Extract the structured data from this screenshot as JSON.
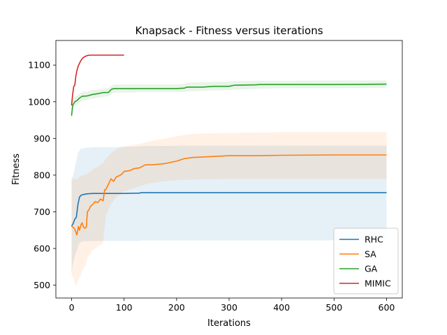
{
  "chart_data": {
    "type": "line",
    "title": "Knapsack - Fitness versus iterations",
    "xlabel": "Iterations",
    "ylabel": "Fitness",
    "xlim": [
      -30,
      630
    ],
    "ylim": [
      465,
      1167
    ],
    "xticks": [
      0,
      100,
      200,
      300,
      400,
      500,
      600
    ],
    "yticks": [
      500,
      600,
      700,
      800,
      900,
      1000,
      1100
    ],
    "grid": false,
    "legend_position": "lower-right",
    "series": [
      {
        "name": "RHC",
        "color": "#1f77b4",
        "x": [
          0,
          3,
          6,
          9,
          12,
          15,
          18,
          22,
          26,
          30,
          40,
          50,
          70,
          100,
          130,
          131,
          200,
          400,
          600
        ],
        "y": [
          661,
          668,
          680,
          685,
          720,
          740,
          745,
          747,
          748,
          749,
          750,
          750,
          750,
          750,
          751,
          752,
          752,
          752,
          752
        ],
        "band_lower": [
          535,
          560,
          580,
          590,
          605,
          615,
          618,
          620,
          620,
          620,
          620,
          621,
          621,
          621,
          621,
          622,
          622,
          622,
          622
        ],
        "band_upper": [
          790,
          800,
          820,
          840,
          860,
          868,
          872,
          873,
          874,
          875,
          876,
          876,
          876,
          877,
          878,
          879,
          880,
          880,
          880
        ]
      },
      {
        "name": "SA",
        "color": "#ff7f0e",
        "x": [
          0,
          5,
          8,
          10,
          13,
          15,
          18,
          20,
          22,
          25,
          28,
          30,
          33,
          36,
          40,
          45,
          50,
          55,
          60,
          63,
          65,
          70,
          75,
          80,
          85,
          90,
          95,
          100,
          110,
          120,
          130,
          140,
          150,
          160,
          170,
          180,
          190,
          200,
          215,
          230,
          260,
          300,
          350,
          400,
          500,
          600
        ],
        "y": [
          661,
          655,
          645,
          637,
          660,
          650,
          665,
          670,
          660,
          655,
          658,
          700,
          705,
          715,
          720,
          728,
          725,
          735,
          730,
          760,
          760,
          775,
          790,
          783,
          795,
          798,
          802,
          810,
          812,
          818,
          820,
          828,
          828,
          829,
          830,
          832,
          835,
          838,
          845,
          848,
          850,
          853,
          853,
          854,
          855,
          855
        ],
        "band_lower": [
          530,
          515,
          495,
          505,
          515,
          520,
          530,
          540,
          545,
          550,
          560,
          575,
          580,
          588,
          595,
          600,
          605,
          610,
          615,
          660,
          690,
          705,
          720,
          730,
          740,
          745,
          750,
          755,
          760,
          765,
          770,
          775,
          778,
          780,
          782,
          783,
          785,
          786,
          787,
          788,
          789,
          790,
          790,
          790,
          790,
          790
        ],
        "band_upper": [
          790,
          790,
          790,
          790,
          792,
          795,
          798,
          800,
          800,
          800,
          802,
          805,
          807,
          810,
          815,
          820,
          822,
          828,
          832,
          840,
          845,
          852,
          860,
          865,
          870,
          874,
          876,
          878,
          880,
          883,
          886,
          889,
          892,
          895,
          898,
          900,
          903,
          906,
          910,
          912,
          914,
          915,
          916,
          917,
          917,
          917
        ]
      },
      {
        "name": "GA",
        "color": "#2ca02c",
        "x": [
          0,
          2,
          4,
          6,
          10,
          15,
          20,
          30,
          35,
          40,
          50,
          60,
          70,
          75,
          80,
          100,
          130,
          160,
          200,
          215,
          220,
          250,
          270,
          300,
          310,
          350,
          360,
          400,
          500,
          600
        ],
        "y": [
          962,
          990,
          995,
          1000,
          1003,
          1010,
          1015,
          1016,
          1018,
          1020,
          1022,
          1025,
          1025,
          1033,
          1036,
          1036,
          1036,
          1036,
          1036,
          1037,
          1040,
          1040,
          1042,
          1042,
          1045,
          1046,
          1047,
          1047,
          1047,
          1048
        ],
        "band_lower": [
          945,
          975,
          982,
          988,
          992,
          997,
          1002,
          1005,
          1007,
          1009,
          1011,
          1013,
          1015,
          1020,
          1025,
          1025,
          1026,
          1026,
          1026,
          1027,
          1028,
          1030,
          1031,
          1032,
          1033,
          1035,
          1036,
          1037,
          1037,
          1038
        ],
        "band_upper": [
          978,
          1005,
          1010,
          1013,
          1015,
          1022,
          1027,
          1028,
          1030,
          1032,
          1033,
          1036,
          1037,
          1044,
          1047,
          1047,
          1047,
          1047,
          1047,
          1048,
          1052,
          1053,
          1054,
          1055,
          1056,
          1057,
          1057,
          1057,
          1058,
          1058
        ]
      },
      {
        "name": "MIMIC",
        "color": "#d62728",
        "x": [
          0,
          2,
          4,
          6,
          8,
          10,
          12,
          15,
          18,
          20,
          22,
          25,
          28,
          30,
          35,
          40,
          50,
          70,
          100
        ],
        "y": [
          990,
          1020,
          1042,
          1045,
          1070,
          1085,
          1095,
          1105,
          1113,
          1117,
          1120,
          1123,
          1125,
          1126,
          1127,
          1127,
          1127,
          1127,
          1127
        ]
      }
    ]
  }
}
